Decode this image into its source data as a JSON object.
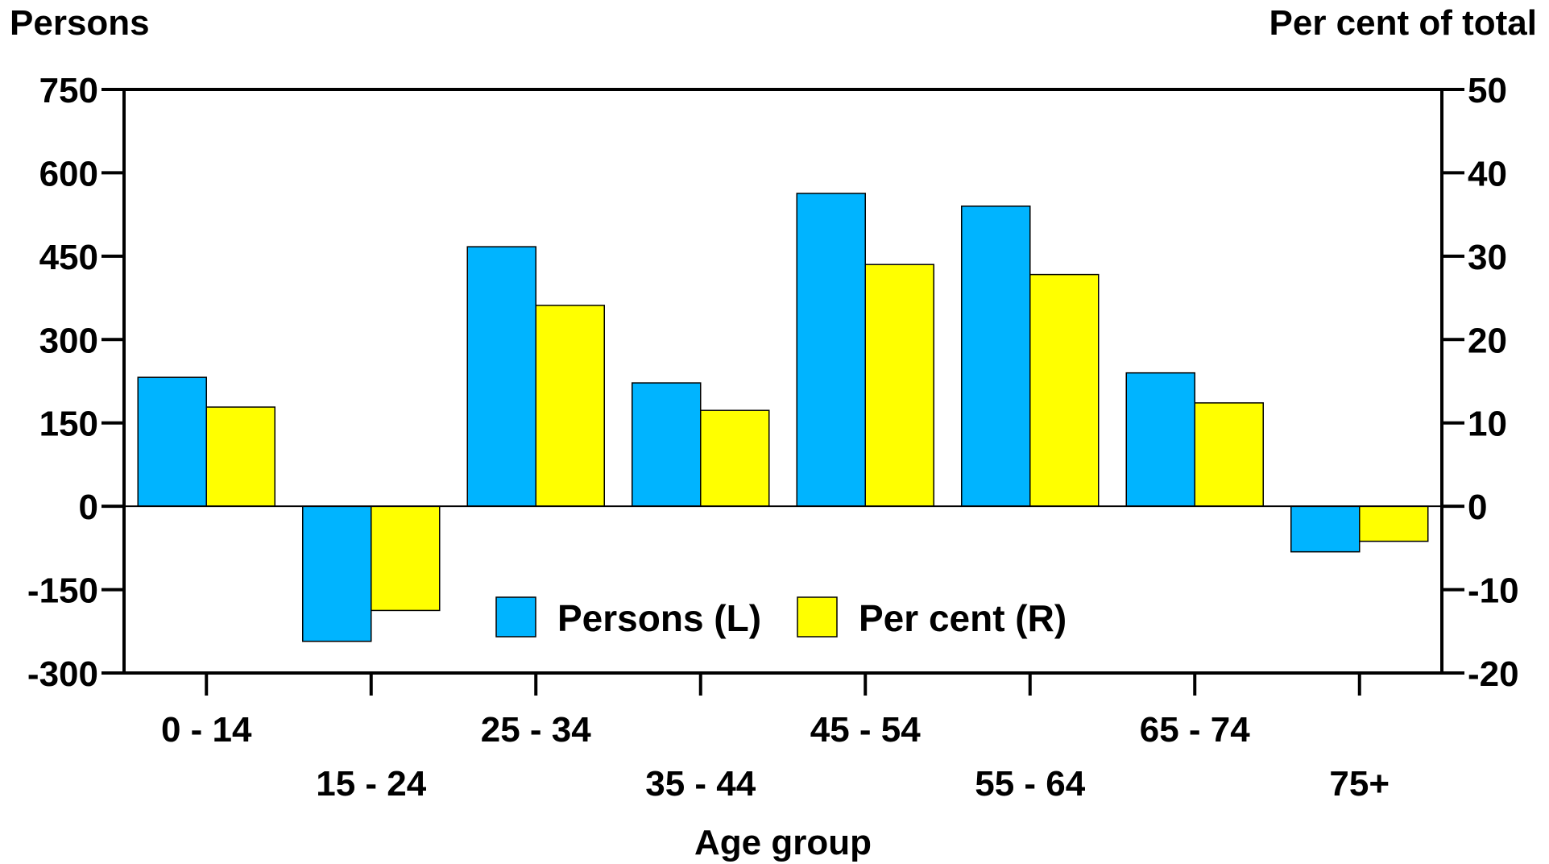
{
  "chart_data": {
    "type": "bar",
    "xlabel": "Age group",
    "ylabel_left": "Persons",
    "ylabel_right": "Per cent of total",
    "categories": [
      "0 - 14",
      "15 - 24",
      "25 - 34",
      "35 - 44",
      "45 - 54",
      "55 - 64",
      "65 - 74",
      "75+"
    ],
    "series": [
      {
        "name": "Persons (L)",
        "axis": "left",
        "color": "#00b4ff",
        "values": [
          232,
          -243,
          467,
          222,
          563,
          540,
          240,
          -82
        ]
      },
      {
        "name": "Per cent (R)",
        "axis": "right",
        "color": "#ffff00",
        "values": [
          11.9,
          -12.5,
          24.1,
          11.5,
          29.0,
          27.8,
          12.4,
          -4.2
        ]
      }
    ],
    "ylim_left": [
      -300,
      750
    ],
    "yticks_left": [
      -300,
      -150,
      0,
      150,
      300,
      450,
      600,
      750
    ],
    "ylim_right": [
      -20,
      50
    ],
    "yticks_right": [
      -20,
      -10,
      0,
      10,
      20,
      30,
      40,
      50
    ],
    "legend_position": "bottom-center",
    "grid": false
  }
}
